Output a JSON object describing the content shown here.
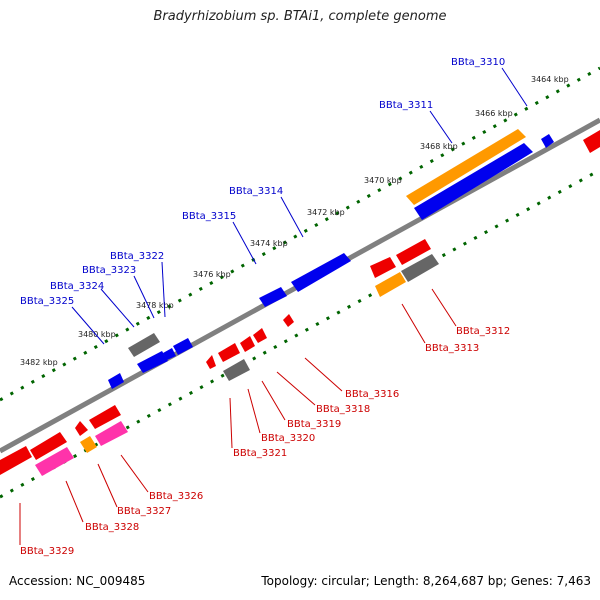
{
  "title": "Bradyrhizobium sp. BTAi1, complete genome",
  "footer": {
    "accession": "Accession: NC_009485",
    "stats": "Topology: circular; Length: 8,264,687 bp; Genes: 7,463"
  },
  "colors": {
    "backbone": "#808080",
    "tick": "#006400",
    "forward_gene": "#0000ee",
    "reverse_gene": "#ee0000",
    "orange_gene": "#ff9900",
    "pink_gene": "#ff33aa",
    "gray_gene": "#666666",
    "top_label": "#0000cc",
    "bottom_label": "#cc0000"
  },
  "kbp_labels": [
    "3464 kbp",
    "3466 kbp",
    "3468 kbp",
    "3470 kbp",
    "3472 kbp",
    "3474 kbp",
    "3476 kbp",
    "3478 kbp",
    "3480 kbp",
    "3482 kbp"
  ],
  "top_genes": [
    "BBta_3310",
    "BBta_3311",
    "BBta_3314",
    "BBta_3315",
    "BBta_3322",
    "BBta_3323",
    "BBta_3324",
    "BBta_3325"
  ],
  "bottom_genes": [
    "BBta_3312",
    "BBta_3313",
    "BBta_3316",
    "BBta_3318",
    "BBta_3319",
    "BBta_3320",
    "BBta_3321",
    "BBta_3326",
    "BBta_3327",
    "BBta_3328",
    "BBta_3329"
  ]
}
